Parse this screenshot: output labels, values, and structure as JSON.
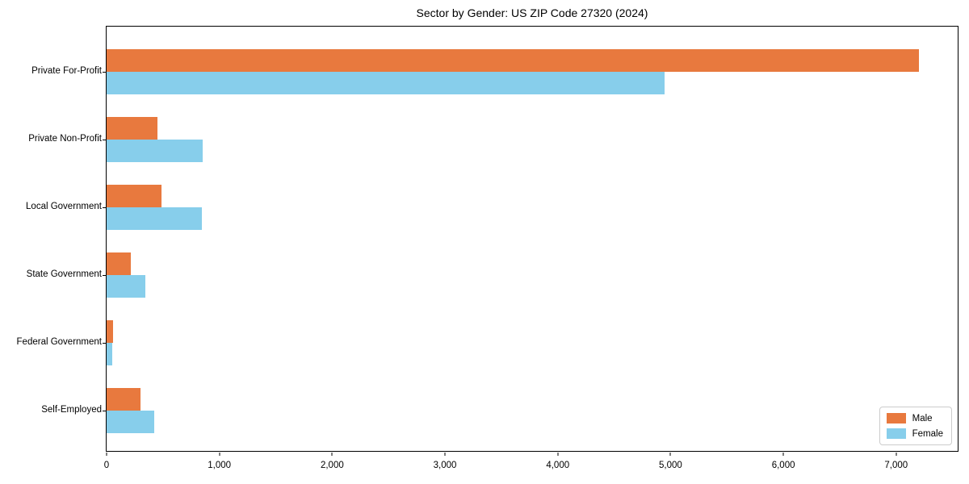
{
  "title": "Sector by Gender: US ZIP Code 27320 (2024)",
  "chart_data": {
    "type": "bar",
    "orientation": "horizontal",
    "title": "Sector by Gender: US ZIP Code 27320 (2024)",
    "xlabel": "",
    "ylabel": "",
    "categories": [
      "Private For-Profit",
      "Private Non-Profit",
      "Local Government",
      "State Government",
      "Federal Government",
      "Self-Employed"
    ],
    "series": [
      {
        "name": "Male",
        "color": "#e8793e",
        "values": [
          7200,
          450,
          490,
          215,
          55,
          300
        ]
      },
      {
        "name": "Female",
        "color": "#87ceeb",
        "values": [
          4950,
          850,
          845,
          345,
          50,
          420
        ]
      }
    ],
    "xlim": [
      0,
      7560
    ],
    "xticks": [
      {
        "value": 0,
        "label": "0"
      },
      {
        "value": 1000,
        "label": "1,000"
      },
      {
        "value": 2000,
        "label": "2,000"
      },
      {
        "value": 3000,
        "label": "3,000"
      },
      {
        "value": 4000,
        "label": "4,000"
      },
      {
        "value": 5000,
        "label": "5,000"
      },
      {
        "value": 6000,
        "label": "6,000"
      },
      {
        "value": 7000,
        "label": "7,000"
      }
    ],
    "grid": false,
    "legend_position": "lower right",
    "legend_entries": [
      "Male",
      "Female"
    ]
  }
}
